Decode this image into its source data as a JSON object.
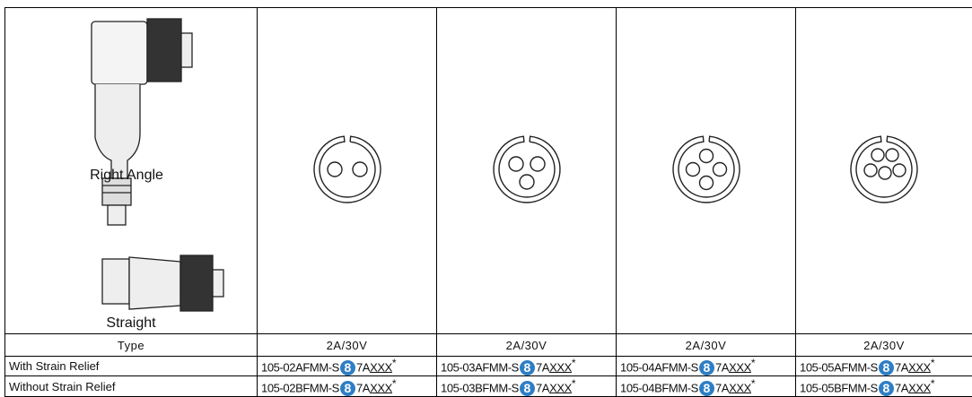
{
  "header": {
    "labels": [
      "Right Angle",
      "Straight"
    ]
  },
  "table": {
    "rows": [
      [
        "Type",
        "2A/30V",
        "2A/30V",
        "2A/30V",
        "2A/30V"
      ],
      [
        "With Strain Relief",
        {
          "prefix": "105-02AFMM-S",
          "code": "8",
          "mid": "7A",
          "suffix": "XXX",
          "note": "*"
        },
        {
          "prefix": "105-03AFMM-S",
          "code": "8",
          "mid": "7A",
          "suffix": "XXX",
          "note": "*"
        },
        {
          "prefix": "105-04AFMM-S",
          "code": "8",
          "mid": "7A",
          "suffix": "XXX",
          "note": "*"
        },
        {
          "prefix": "105-05AFMM-S",
          "code": "8",
          "mid": "7A",
          "suffix": "XXX",
          "note": "*"
        }
      ],
      [
        "Without Strain Relief",
        {
          "prefix": "105-02BFMM-S",
          "code": "8",
          "mid": "7A",
          "suffix": "XXX",
          "note": "*"
        },
        {
          "prefix": "105-03BFMM-S",
          "code": "8",
          "mid": "7A",
          "suffix": "XXX",
          "note": "*"
        },
        {
          "prefix": "105-04BFMM-S",
          "code": "8",
          "mid": "7A",
          "suffix": "XXX",
          "note": "*"
        },
        {
          "prefix": "105-05BFMM-S",
          "code": "8",
          "mid": "7A",
          "suffix": "XXX",
          "note": "*"
        }
      ]
    ]
  }
}
